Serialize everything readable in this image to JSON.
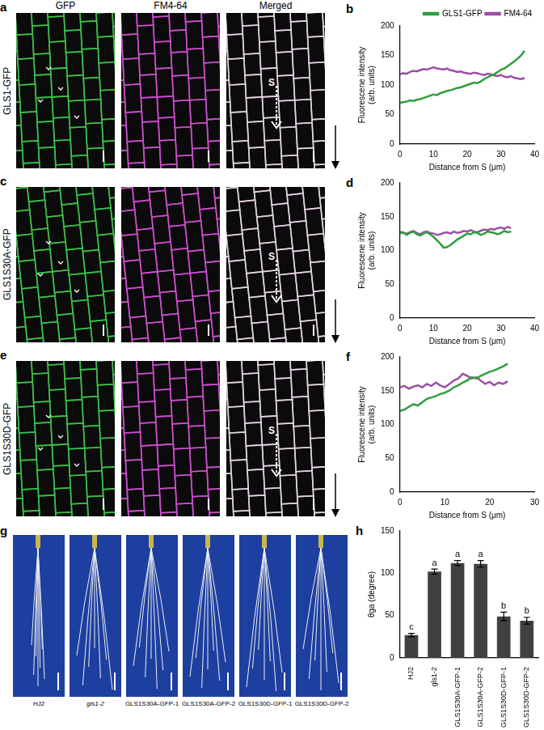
{
  "figure": {
    "micrograph_columns": [
      "GFP",
      "FM4-64",
      "Merged"
    ],
    "micrograph_rows": [
      {
        "panel": "a",
        "label": "GLS1-GFP"
      },
      {
        "panel": "c",
        "label": "GLS1S30A-GFP"
      },
      {
        "panel": "e",
        "label": "GLS1S30D-GFP"
      }
    ],
    "scan_start": "S",
    "photo_panel": {
      "panel": "g",
      "labels": [
        "HJ2",
        "gls1-2",
        "GLS1S30A-GFP-1",
        "GLS1S30A-GFP-2",
        "GLS1S30D-GFP-1",
        "GLS1S30D-GFP-2"
      ]
    }
  },
  "chart_data": [
    {
      "panel": "b",
      "type": "line",
      "x_label": "Distance from S (μm)",
      "y_label": [
        "Fluorescene intensity",
        "(arb. units)"
      ],
      "xlim": [
        0,
        40
      ],
      "xticks": [
        0,
        10,
        20,
        30,
        40
      ],
      "ylim": [
        0,
        200
      ],
      "yticks": [
        0,
        50,
        100,
        150,
        200
      ],
      "grid": false,
      "legend": "top",
      "x": [
        0,
        1,
        2,
        3,
        4,
        5,
        6,
        7,
        8,
        9,
        10,
        11,
        12,
        13,
        14,
        15,
        16,
        17,
        18,
        19,
        20,
        21,
        22,
        23,
        24,
        25,
        26,
        27,
        28,
        29,
        30,
        31,
        32,
        33,
        34,
        35,
        36,
        37
      ],
      "series": [
        {
          "name": "GLS1-GFP",
          "color": "#2e9e3e",
          "values": [
            70,
            71,
            72,
            74,
            73,
            75,
            76,
            78,
            80,
            82,
            84,
            83,
            86,
            88,
            90,
            91,
            93,
            95,
            96,
            98,
            100,
            102,
            104,
            103,
            106,
            110,
            113,
            116,
            118,
            122,
            126,
            128,
            132,
            136,
            140,
            145,
            150,
            158
          ]
        },
        {
          "name": "FM4-64",
          "color": "#9b4fa5",
          "values": [
            118,
            120,
            119,
            122,
            124,
            123,
            125,
            127,
            126,
            128,
            130,
            128,
            127,
            126,
            128,
            125,
            124,
            122,
            123,
            121,
            120,
            119,
            121,
            120,
            118,
            117,
            119,
            118,
            116,
            115,
            117,
            114,
            113,
            115,
            112,
            111,
            110,
            112
          ]
        }
      ]
    },
    {
      "panel": "d",
      "type": "line",
      "x_label": "Distance from S (μm)",
      "y_label": [
        "Fluorescene intensity",
        "(arb. units)"
      ],
      "xlim": [
        0,
        40
      ],
      "xticks": [
        0,
        10,
        20,
        30,
        40
      ],
      "ylim": [
        0,
        200
      ],
      "yticks": [
        0,
        50,
        100,
        150,
        200
      ],
      "grid": false,
      "x": [
        0,
        1,
        2,
        3,
        4,
        5,
        6,
        7,
        8,
        9,
        10,
        11,
        12,
        13,
        14,
        15,
        16,
        17,
        18,
        19,
        20,
        21,
        22,
        23,
        24,
        25,
        26,
        27,
        28,
        29,
        30,
        31,
        32,
        33
      ],
      "series": [
        {
          "name": "GLS1-GFP",
          "color": "#2e9e3e",
          "values": [
            125,
            127,
            123,
            126,
            128,
            124,
            122,
            125,
            127,
            124,
            120,
            115,
            110,
            104,
            105,
            108,
            112,
            116,
            119,
            122,
            125,
            124,
            127,
            126,
            123,
            125,
            128,
            127,
            126,
            124,
            126,
            129,
            127,
            128
          ]
        },
        {
          "name": "FM4-64",
          "color": "#9b4fa5",
          "values": [
            128,
            126,
            125,
            127,
            129,
            126,
            124,
            127,
            128,
            126,
            125,
            123,
            124,
            126,
            127,
            125,
            128,
            126,
            127,
            129,
            128,
            130,
            128,
            127,
            129,
            131,
            130,
            132,
            131,
            133,
            134,
            132,
            135,
            133
          ]
        }
      ]
    },
    {
      "panel": "f",
      "type": "line",
      "x_label": "Distance from S (μm)",
      "y_label": [
        "Fluorescene intensity",
        "(arb. units)"
      ],
      "xlim": [
        0,
        30
      ],
      "xticks": [
        0,
        10,
        20,
        30
      ],
      "ylim": [
        0,
        200
      ],
      "yticks": [
        0,
        50,
        100,
        150,
        200
      ],
      "grid": false,
      "x": [
        0,
        1,
        2,
        3,
        4,
        5,
        6,
        7,
        8,
        9,
        10,
        11,
        12,
        13,
        14,
        15,
        16,
        17,
        18,
        19,
        20,
        21,
        22,
        23,
        24
      ],
      "series": [
        {
          "name": "GLS1-GFP",
          "color": "#2e9e3e",
          "values": [
            120,
            122,
            126,
            130,
            128,
            133,
            138,
            140,
            142,
            145,
            147,
            150,
            155,
            158,
            162,
            165,
            170,
            168,
            172,
            175,
            178,
            180,
            183,
            186,
            190
          ]
        },
        {
          "name": "FM4-64",
          "color": "#9b4fa5",
          "values": [
            155,
            157,
            153,
            156,
            158,
            155,
            160,
            157,
            162,
            158,
            155,
            160,
            165,
            168,
            175,
            172,
            168,
            170,
            165,
            160,
            163,
            158,
            162,
            160,
            164
          ]
        }
      ]
    },
    {
      "panel": "h",
      "type": "bar",
      "y_label": "θga (degree)",
      "categories": [
        "HJ2",
        "gls1-2",
        "GLS1S30A-GFP-1",
        "GLS1S30A-GFP-2",
        "GLS1S30D-GFP-1",
        "GLS1S30D-GFP-2"
      ],
      "values": [
        27,
        102,
        112,
        111,
        49,
        44
      ],
      "errors": [
        2,
        3,
        3,
        4,
        5,
        4
      ],
      "letters": [
        "c",
        "a",
        "a",
        "a",
        "b",
        "b"
      ],
      "color": "#404040",
      "ylim": [
        0,
        150
      ],
      "yticks": [
        0,
        50,
        100,
        150
      ],
      "grid": false
    }
  ]
}
